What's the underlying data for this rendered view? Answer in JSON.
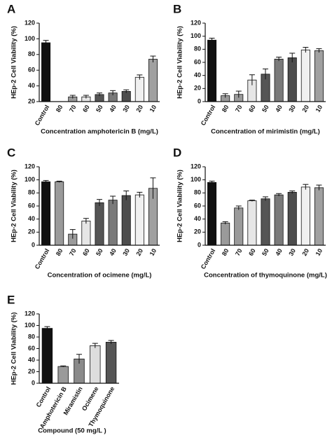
{
  "chart_data": [
    {
      "type": "bar",
      "panel": "A",
      "ylabel": "HEp-2 Cell Viability (%)",
      "xlabel": "Concentration amphotericin B (mg/L)",
      "categories": [
        "Control",
        "80",
        "70",
        "60",
        "50",
        "40",
        "30",
        "20",
        "10"
      ],
      "values": [
        95,
        null,
        26,
        26,
        29,
        31,
        33,
        51,
        74
      ],
      "errors": [
        3,
        null,
        2,
        2,
        2,
        3,
        2,
        3,
        4
      ],
      "colors": [
        "#111111",
        "#9a9a9a",
        "#9a9a9a",
        "#e6e6e6",
        "#555555",
        "#7a7a7a",
        "#4d4d4d",
        "#f0f0f0",
        "#a0a0a0"
      ],
      "ylim": [
        20,
        120
      ],
      "yticks": [
        20,
        40,
        60,
        80,
        100,
        120
      ]
    },
    {
      "type": "bar",
      "panel": "B",
      "ylabel": "HEp-2 Cell Viability (%)",
      "xlabel": "Concentration of mirimistin (mg/L)",
      "categories": [
        "Control",
        "80",
        "70",
        "60",
        "50",
        "40",
        "30",
        "20",
        "10"
      ],
      "values": [
        94,
        9,
        11,
        33,
        42,
        65,
        67,
        79,
        78
      ],
      "errors": [
        3,
        3,
        5,
        8,
        8,
        3,
        7,
        4,
        3
      ],
      "colors": [
        "#111111",
        "#9a9a9a",
        "#9a9a9a",
        "#e6e6e6",
        "#555555",
        "#7a7a7a",
        "#4d4d4d",
        "#f0f0f0",
        "#a0a0a0"
      ],
      "ylim": [
        0,
        120
      ],
      "yticks": [
        0,
        20,
        40,
        60,
        80,
        100,
        120
      ]
    },
    {
      "type": "bar",
      "panel": "C",
      "ylabel": "HEp-2 Cell Viability (%)",
      "xlabel": "Concentration of ocimene (mg/L)",
      "categories": [
        "Control",
        "80",
        "70",
        "60",
        "50",
        "40",
        "30",
        "20",
        "10"
      ],
      "values": [
        97,
        97,
        17,
        37,
        65,
        69,
        76,
        77,
        87
      ],
      "errors": [
        2,
        1,
        7,
        4,
        5,
        6,
        7,
        4,
        16
      ],
      "colors": [
        "#111111",
        "#9a9a9a",
        "#9a9a9a",
        "#e6e6e6",
        "#555555",
        "#7a7a7a",
        "#4d4d4d",
        "#f0f0f0",
        "#a0a0a0"
      ],
      "ylim": [
        0,
        120
      ],
      "yticks": [
        0,
        20,
        40,
        60,
        80,
        100,
        120
      ]
    },
    {
      "type": "bar",
      "panel": "D",
      "ylabel": "HEp-2 Cell Viability (%)",
      "xlabel": "Concentration of thymoquinone (mg/L)",
      "categories": [
        "Control",
        "80",
        "70",
        "60",
        "50",
        "40",
        "30",
        "20",
        "10"
      ],
      "values": [
        96,
        34,
        57,
        68,
        71,
        77,
        81,
        89,
        88
      ],
      "errors": [
        2,
        2,
        3,
        1,
        3,
        2,
        2,
        4,
        4
      ],
      "colors": [
        "#111111",
        "#9a9a9a",
        "#9a9a9a",
        "#e6e6e6",
        "#555555",
        "#7a7a7a",
        "#4d4d4d",
        "#f0f0f0",
        "#a0a0a0"
      ],
      "ylim": [
        0,
        120
      ],
      "yticks": [
        0,
        20,
        40,
        60,
        80,
        100,
        120
      ]
    },
    {
      "type": "bar",
      "panel": "E",
      "ylabel": "HEp-2 Cell Viability (%)",
      "xlabel": "Compound (50 mg/L )",
      "categories": [
        "Control",
        "Amphotericin B",
        "Miramistin",
        "Ocimene",
        "Thymoquinone"
      ],
      "values": [
        95,
        29,
        42,
        65,
        71
      ],
      "errors": [
        3,
        1,
        8,
        4,
        3
      ],
      "colors": [
        "#111111",
        "#9a9a9a",
        "#8a8a8a",
        "#dddddd",
        "#555555"
      ],
      "ylim": [
        0,
        120
      ],
      "yticks": [
        0,
        20,
        40,
        60,
        80,
        100,
        120
      ]
    }
  ]
}
